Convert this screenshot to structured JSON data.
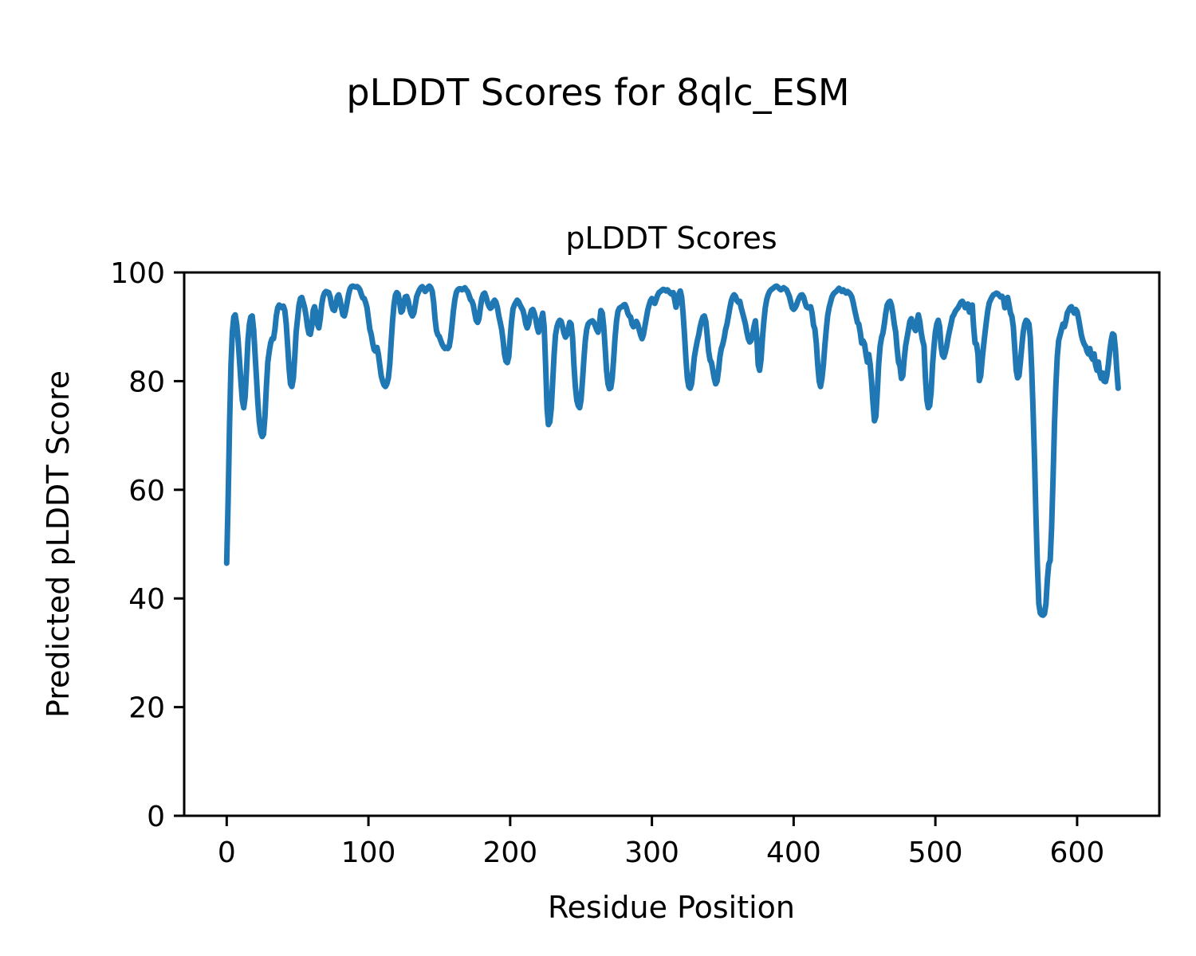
{
  "figure": {
    "suptitle": "pLDDT Scores for 8qlc_ESM",
    "background": "#ffffff"
  },
  "chart_data": {
    "type": "line",
    "title": "pLDDT Scores",
    "xlabel": "Residue Position",
    "ylabel": "Predicted pLDDT Score",
    "xlim": [
      -30,
      658
    ],
    "ylim": [
      0,
      100
    ],
    "xticks": [
      0,
      100,
      200,
      300,
      400,
      500,
      600
    ],
    "yticks": [
      0,
      20,
      40,
      60,
      80,
      100
    ],
    "grid": false,
    "legend": null,
    "line_color": "#1f77b4",
    "axis_color": "#000000",
    "series": [
      {
        "name": "pLDDT",
        "x_start": 0,
        "x_step": 1,
        "values": [
          46.5,
          58,
          72,
          83,
          89,
          91.8,
          92.2,
          90.5,
          87.8,
          84,
          80,
          76.5,
          75.1,
          77,
          82,
          87.5,
          90.5,
          91.8,
          92,
          89.5,
          85,
          80.5,
          76,
          72.5,
          70.5,
          69.8,
          70.2,
          73.5,
          79,
          83.5,
          85.5,
          87,
          87.8,
          87.8,
          89.5,
          92,
          93.5,
          94,
          93.8,
          93.5,
          93.8,
          93,
          90.5,
          86.5,
          82.5,
          79.5,
          79,
          80.5,
          84.5,
          89,
          91.5,
          94,
          95.2,
          95.4,
          94.5,
          93.5,
          92,
          90,
          88.8,
          88.6,
          90,
          93,
          93.7,
          92.5,
          90.5,
          89.8,
          91.5,
          94,
          95.5,
          96.2,
          96.5,
          96.4,
          96.3,
          95.5,
          94,
          93.2,
          93,
          94,
          95.5,
          95.9,
          95,
          93.5,
          92.2,
          92,
          93,
          94.5,
          96,
          97,
          97.4,
          97.5,
          97.4,
          97.3,
          97.4,
          97.2,
          96.8,
          96,
          95.3,
          95.2,
          94.5,
          93.5,
          91.5,
          89.5,
          88.6,
          87,
          85.8,
          85.5,
          86.2,
          85,
          83,
          81,
          80,
          79.3,
          79,
          79.5,
          80.5,
          83,
          87,
          91,
          94,
          95.8,
          96.3,
          96,
          94.5,
          92.7,
          93,
          94.5,
          95.5,
          95.6,
          94.8,
          93.5,
          92.5,
          92,
          92.5,
          94,
          95.5,
          96.2,
          96.8,
          97.2,
          97.4,
          97,
          96.5,
          96.8,
          97.3,
          97.5,
          97.2,
          96.5,
          94.5,
          91.5,
          89.3,
          88.5,
          88.2,
          87.5,
          86.8,
          86.3,
          86,
          86.2,
          86,
          86.4,
          88,
          90.5,
          93,
          95,
          96.3,
          96.8,
          97,
          97,
          96.8,
          97,
          97.2,
          96.8,
          96.5,
          95.8,
          95,
          94.7,
          94,
          92.5,
          91.2,
          90.8,
          91.5,
          93.5,
          95.2,
          96,
          96.2,
          95.5,
          94.5,
          93.8,
          93.4,
          93.6,
          94.5,
          94.9,
          94.5,
          93.5,
          92,
          90.8,
          89.5,
          87.5,
          85,
          83.7,
          83.4,
          84.5,
          88,
          91,
          93.3,
          94,
          94.5,
          94.9,
          94.6,
          94,
          93.5,
          93,
          92,
          90.5,
          89.8,
          90.5,
          92,
          93,
          93.2,
          92.5,
          91.5,
          90,
          89,
          90,
          91.5,
          92.5,
          90,
          83,
          75,
          72,
          72.5,
          75,
          80,
          85,
          88.5,
          90,
          90.8,
          91.2,
          91,
          90,
          88.8,
          88.1,
          88.5,
          89.5,
          90.8,
          90.5,
          88,
          83,
          79,
          76.5,
          75.5,
          75.1,
          76.5,
          80,
          84,
          87.5,
          89.5,
          90.5,
          90.8,
          91,
          91.1,
          90.8,
          90.2,
          89.5,
          89,
          90.5,
          93,
          92.5,
          90,
          86,
          82,
          79.5,
          78.6,
          78.8,
          80.5,
          84,
          88,
          91,
          92.8,
          93.4,
          93.6,
          93.7,
          94,
          94.1,
          93.5,
          92.5,
          92,
          91.8,
          90.5,
          90,
          90.5,
          91,
          90.5,
          89.5,
          88.5,
          87.8,
          88.5,
          90,
          91.5,
          93,
          94,
          94.8,
          95.2,
          94.8,
          94.3,
          95,
          95.8,
          96.3,
          96.5,
          96.7,
          96.9,
          96.8,
          96.6,
          96.8,
          96.5,
          96.2,
          96,
          96.3,
          95,
          93.6,
          94.5,
          96,
          96.6,
          95.5,
          92.5,
          88.5,
          84,
          80.5,
          79,
          78.7,
          79.5,
          82,
          84.5,
          86,
          87.4,
          88.5,
          90,
          91,
          91.8,
          92,
          91,
          88.5,
          85.5,
          83.9,
          83.4,
          82,
          80.5,
          79.5,
          80,
          82,
          84.5,
          86,
          86.8,
          88,
          89.5,
          90.5,
          92,
          93.5,
          94.8,
          95.5,
          95.9,
          95.6,
          94.8,
          94.5,
          94.7,
          93.5,
          92.5,
          91.5,
          90.5,
          89,
          87.8,
          87.2,
          87.5,
          88.5,
          90,
          91.1,
          88,
          83,
          82,
          84,
          88,
          91,
          93.5,
          95,
          95.9,
          96.5,
          96.8,
          97,
          97.2,
          97.4,
          97.5,
          97.3,
          97,
          96.8,
          97,
          97.2,
          97,
          96.8,
          96.2,
          95.6,
          94.5,
          93.5,
          93.2,
          93.5,
          94,
          94.8,
          95.4,
          95.8,
          95.9,
          95.5,
          94.5,
          93.7,
          93.5,
          93.6,
          93.7,
          92.5,
          90.3,
          89.6,
          87,
          83,
          80,
          79,
          80.5,
          83,
          86.5,
          89.5,
          92,
          93.5,
          94.5,
          95.5,
          96,
          96.3,
          96.5,
          96.8,
          97.1,
          96.8,
          96.5,
          96.8,
          96.5,
          96.2,
          96.5,
          96.3,
          96,
          95.5,
          94.5,
          93.2,
          92,
          90.8,
          90.5,
          89,
          87,
          87.4,
          86.8,
          85,
          83.5,
          84.9,
          83,
          80,
          76,
          72.7,
          73.5,
          78,
          83,
          86.4,
          88,
          88.9,
          90.5,
          92.5,
          94,
          94.5,
          94.7,
          94,
          92.5,
          90.5,
          89,
          86,
          83.5,
          82.8,
          80.5,
          81,
          84,
          86.5,
          88,
          89.5,
          91,
          91.5,
          90.5,
          89.8,
          89.3,
          91,
          92.2,
          91,
          88.9,
          87.5,
          86.5,
          80.5,
          76.5,
          75.1,
          75.5,
          78,
          83,
          86.4,
          89,
          90.5,
          91.2,
          90,
          86.5,
          84.8,
          84.4,
          85.3,
          86.5,
          88,
          89.3,
          90.5,
          91.8,
          92.2,
          92.8,
          93.2,
          93.5,
          94,
          94.5,
          94.7,
          94.3,
          93.5,
          93.8,
          94.2,
          92.7,
          93.5,
          94,
          90,
          87,
          86.8,
          85,
          80.1,
          81,
          84,
          86.5,
          88.9,
          91,
          93,
          94.4,
          95,
          95.5,
          95.9,
          96,
          96.2,
          96.1,
          95.8,
          95.5,
          95.6,
          95.2,
          93.5,
          94.5,
          95.4,
          94,
          92.5,
          91.9,
          90,
          86,
          82,
          80.6,
          81,
          83.5,
          86.5,
          89,
          90.5,
          91.2,
          91,
          90.5,
          88,
          82,
          74,
          65,
          55,
          46,
          39,
          37.3,
          37,
          36.9,
          37.2,
          39,
          43.5,
          46.3,
          47,
          53,
          62,
          72,
          79,
          84.5,
          87.5,
          88.5,
          89.5,
          90.5,
          90,
          91,
          92.5,
          93,
          93.5,
          93.7,
          93,
          92.5,
          93.2,
          92.8,
          91.5,
          90,
          88.5,
          87.5,
          86.8,
          86.4,
          85.5,
          85,
          86,
          84.5,
          84,
          85,
          83,
          82,
          83.5,
          81.5,
          80.5,
          81.5,
          80,
          79.9,
          81,
          83,
          85.5,
          87.5,
          88.7,
          88.5,
          86,
          82,
          78.7
        ]
      }
    ]
  }
}
